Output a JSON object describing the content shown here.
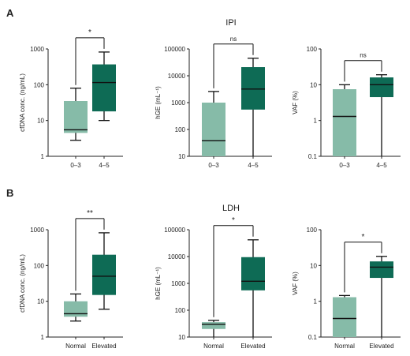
{
  "colors": {
    "light": "#86bba8",
    "dark": "#0e6b55",
    "axis": "#222222",
    "text": "#222222"
  },
  "chart_data": [
    {
      "type": "box",
      "panel": "A",
      "group_title": "IPI",
      "ylabel": "cfDNA conc. (ng/mL)",
      "scale": "log",
      "ylim": [
        1,
        1000
      ],
      "yticks": [
        "1",
        "10",
        "100",
        "1000"
      ],
      "categories": [
        "0–3",
        "4–5"
      ],
      "boxes": [
        {
          "min": 2.8,
          "q1": 4.5,
          "median": 5.5,
          "q3": 35,
          "max": 80
        },
        {
          "min": 10,
          "q1": 18,
          "median": 115,
          "q3": 370,
          "max": 820
        }
      ],
      "significance": "*"
    },
    {
      "type": "box",
      "panel": "A",
      "group_title": "",
      "ylabel": "hGE (mL⁻¹)",
      "scale": "log",
      "ylim": [
        10,
        100000
      ],
      "yticks": [
        "10",
        "100",
        "1000",
        "10000",
        "100000"
      ],
      "categories": [
        "0–3",
        "4–5"
      ],
      "boxes": [
        {
          "min": 10,
          "q1": 10,
          "median": 38,
          "q3": 1000,
          "max": 2600
        },
        {
          "min": 10,
          "q1": 550,
          "median": 3200,
          "q3": 21000,
          "max": 45000
        }
      ],
      "significance": "ns"
    },
    {
      "type": "box",
      "panel": "A",
      "group_title": "",
      "ylabel": "VAF (%)",
      "scale": "log",
      "ylim": [
        0.1,
        100
      ],
      "yticks": [
        "0.1",
        "1",
        "10",
        "100"
      ],
      "categories": [
        "0–3",
        "4–5"
      ],
      "boxes": [
        {
          "min": 0.1,
          "q1": 0.1,
          "median": 1.3,
          "q3": 7.5,
          "max": 10
        },
        {
          "min": 0.1,
          "q1": 4.5,
          "median": 10,
          "q3": 16,
          "max": 19
        }
      ],
      "significance": "ns"
    },
    {
      "type": "box",
      "panel": "B",
      "group_title": "LDH",
      "ylabel": "cfDNA conc. (ng/mL)",
      "scale": "log",
      "ylim": [
        1,
        1000
      ],
      "yticks": [
        "1",
        "10",
        "100",
        "1000"
      ],
      "categories": [
        "Normal",
        "Elevated"
      ],
      "boxes": [
        {
          "min": 2.8,
          "q1": 3.7,
          "median": 4.5,
          "q3": 10,
          "max": 16
        },
        {
          "min": 6,
          "q1": 15,
          "median": 50,
          "q3": 200,
          "max": 820
        }
      ],
      "significance": "**"
    },
    {
      "type": "box",
      "panel": "B",
      "group_title": "",
      "ylabel": "hGE (mL⁻¹)",
      "scale": "log",
      "ylim": [
        10,
        100000
      ],
      "yticks": [
        "10",
        "100",
        "1000",
        "10000",
        "100000"
      ],
      "categories": [
        "Normal",
        "Elevated"
      ],
      "boxes": [
        {
          "min": 10,
          "q1": 20,
          "median": 30,
          "q3": 36,
          "max": 42
        },
        {
          "min": 10,
          "q1": 550,
          "median": 1200,
          "q3": 9500,
          "max": 42000
        }
      ],
      "significance": "*"
    },
    {
      "type": "box",
      "panel": "B",
      "group_title": "",
      "ylabel": "VAF (%)",
      "scale": "log",
      "ylim": [
        0.1,
        100
      ],
      "yticks": [
        "0.1",
        "1",
        "10",
        "100"
      ],
      "categories": [
        "Normal",
        "Elevated"
      ],
      "boxes": [
        {
          "min": 0.1,
          "q1": 0.1,
          "median": 0.33,
          "q3": 1.3,
          "max": 1.45
        },
        {
          "min": 0.1,
          "q1": 4.5,
          "median": 9,
          "q3": 13,
          "max": 18
        }
      ],
      "significance": "*"
    }
  ]
}
